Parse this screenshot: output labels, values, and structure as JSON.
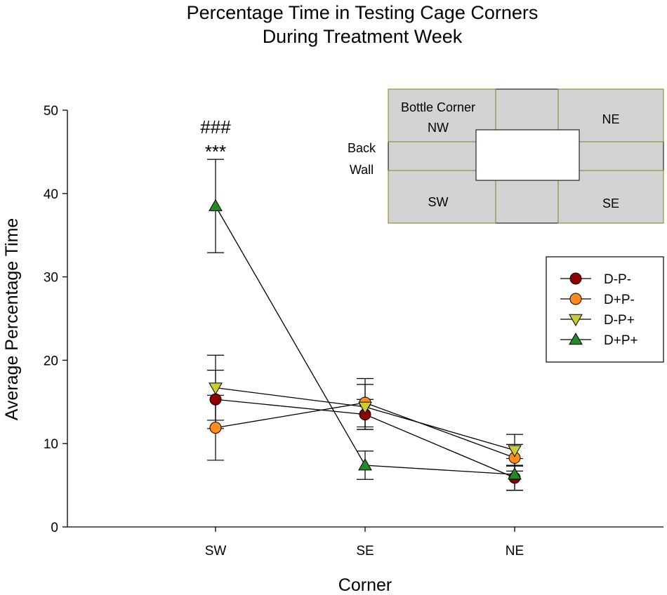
{
  "chart_data": {
    "type": "line",
    "title_lines": [
      "Percentage Time in Testing Cage Corners",
      "During Treatment Week"
    ],
    "xlabel": "Corner",
    "ylabel": "Average Percentage Time",
    "categories": [
      "SW",
      "SE",
      "NE"
    ],
    "ylim": [
      0,
      50
    ],
    "yticks": [
      0,
      10,
      20,
      30,
      40,
      50
    ],
    "grid": false,
    "legend_position": "right",
    "series": [
      {
        "name": "D-P-",
        "marker": "circle",
        "color": "#8b0000",
        "values": [
          15.3,
          13.5,
          5.9
        ],
        "errors": [
          3.5,
          1.8,
          1.5
        ]
      },
      {
        "name": "D+P-",
        "marker": "circle",
        "color": "#ff8c1a",
        "values": [
          11.9,
          14.9,
          8.3
        ],
        "errors": [
          3.9,
          2.9,
          1.6
        ]
      },
      {
        "name": "D-P+",
        "marker": "triangle-down",
        "color": "#cccc33",
        "values": [
          16.7,
          14.4,
          9.2
        ],
        "errors": [
          3.9,
          2.7,
          1.9
        ]
      },
      {
        "name": "D+P+",
        "marker": "triangle-up",
        "color": "#228b22",
        "values": [
          38.5,
          7.4,
          6.3
        ],
        "errors": [
          5.6,
          1.7,
          1.9
        ]
      }
    ],
    "annotations": [
      {
        "text": "###",
        "category": "SW",
        "y": 48.0
      },
      {
        "text": "***",
        "category": "SW",
        "y": 45.7
      }
    ],
    "inset": {
      "bottle_corner_label": "Bottle Corner",
      "nw": "NW",
      "ne": "NE",
      "sw": "SW",
      "se": "SE",
      "back_wall_line1": "Back",
      "back_wall_line2": "Wall"
    }
  }
}
